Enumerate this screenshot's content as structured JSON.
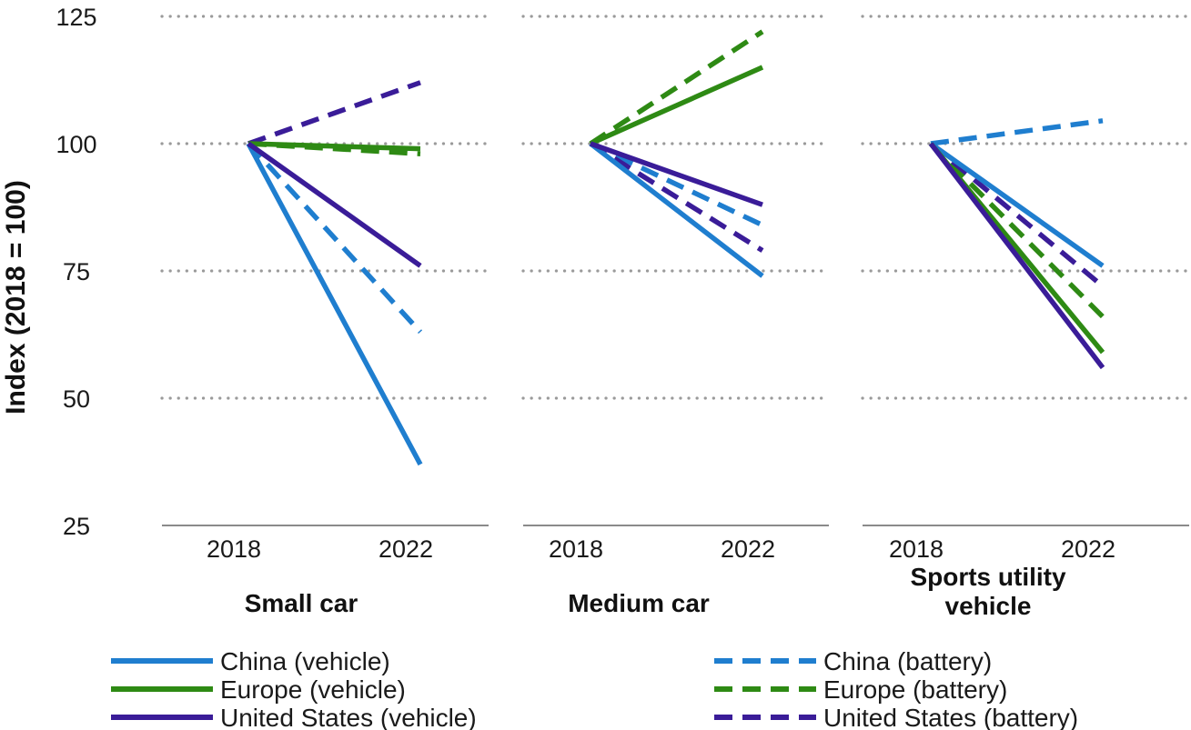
{
  "chart_data": {
    "type": "line",
    "ylabel": "Index (2018 = 100)",
    "ylim": [
      25,
      125
    ],
    "yticks": [
      "25",
      "50",
      "75",
      "100",
      "125"
    ],
    "grid": true,
    "legend_position": "bottom",
    "series_styles": [
      {
        "name": "China (vehicle)",
        "color": "#1f7ecf",
        "dash": "solid"
      },
      {
        "name": "Europe (vehicle)",
        "color": "#2e8a14",
        "dash": "solid"
      },
      {
        "name": "United States (vehicle)",
        "color": "#3a1c98",
        "dash": "solid"
      },
      {
        "name": "China (battery)",
        "color": "#1f7ecf",
        "dash": "dashed"
      },
      {
        "name": "Europe (battery)",
        "color": "#2e8a14",
        "dash": "dashed"
      },
      {
        "name": "United States (battery)",
        "color": "#3a1c98",
        "dash": "dashed"
      }
    ],
    "panels": [
      {
        "title": [
          "Small car"
        ],
        "x": [
          "2018",
          "2022"
        ],
        "series": [
          {
            "name": "China (vehicle)",
            "values": [
              100,
              37
            ]
          },
          {
            "name": "Europe (vehicle)",
            "values": [
              100,
              99
            ]
          },
          {
            "name": "United States (vehicle)",
            "values": [
              100,
              76
            ]
          },
          {
            "name": "China (battery)",
            "values": [
              100,
              63
            ]
          },
          {
            "name": "Europe (battery)",
            "values": [
              100,
              98
            ]
          },
          {
            "name": "United States (battery)",
            "values": [
              100,
              112
            ]
          }
        ]
      },
      {
        "title": [
          "Medium car"
        ],
        "x": [
          "2018",
          "2022"
        ],
        "series": [
          {
            "name": "China (vehicle)",
            "values": [
              100,
              74
            ]
          },
          {
            "name": "Europe (vehicle)",
            "values": [
              100,
              115
            ]
          },
          {
            "name": "United States (vehicle)",
            "values": [
              100,
              88
            ]
          },
          {
            "name": "China (battery)",
            "values": [
              100,
              84
            ]
          },
          {
            "name": "Europe (battery)",
            "values": [
              100,
              122
            ]
          },
          {
            "name": "United States (battery)",
            "values": [
              100,
              79
            ]
          }
        ]
      },
      {
        "title": [
          "Sports utility",
          "vehicle"
        ],
        "x": [
          "2018",
          "2022"
        ],
        "series": [
          {
            "name": "China (vehicle)",
            "values": [
              100,
              76
            ]
          },
          {
            "name": "Europe (vehicle)",
            "values": [
              100,
              59
            ]
          },
          {
            "name": "United States (vehicle)",
            "values": [
              100,
              56
            ]
          },
          {
            "name": "China (battery)",
            "values": [
              100,
              104.5
            ]
          },
          {
            "name": "Europe (battery)",
            "values": [
              100,
              66
            ]
          },
          {
            "name": "United States (battery)",
            "values": [
              100,
              72
            ]
          }
        ]
      }
    ]
  }
}
